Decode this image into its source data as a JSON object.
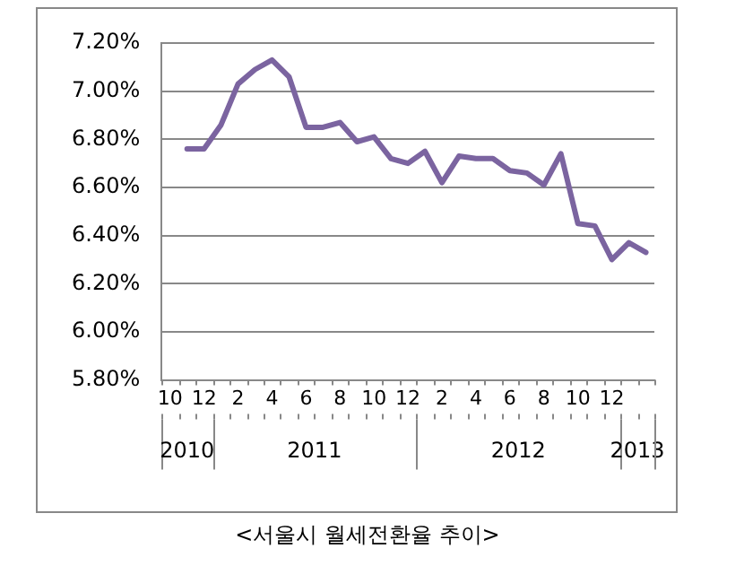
{
  "chart_data": {
    "type": "line",
    "categories": [
      "10",
      null,
      "12",
      null,
      "2",
      null,
      "4",
      null,
      "6",
      null,
      "8",
      null,
      "10",
      null,
      "12",
      null,
      "2",
      null,
      "4",
      null,
      "6",
      null,
      "8",
      null,
      "10",
      null,
      "12",
      null,
      null
    ],
    "series": [
      {
        "color": "#7b64a0",
        "values": [
          null,
          6.76,
          6.76,
          6.86,
          7.03,
          7.09,
          7.13,
          7.06,
          6.85,
          6.85,
          6.87,
          6.79,
          6.81,
          6.72,
          6.7,
          6.75,
          6.62,
          6.73,
          6.72,
          6.72,
          6.67,
          6.66,
          6.61,
          6.74,
          6.45,
          6.44,
          6.3,
          6.37,
          6.33
        ]
      }
    ],
    "ylim": [
      5.8,
      7.2
    ],
    "yticks": [
      {
        "value": 5.8,
        "label": "5.80%"
      },
      {
        "value": 6.0,
        "label": "6.00%"
      },
      {
        "value": 6.2,
        "label": "6.20%"
      },
      {
        "value": 6.4,
        "label": "6.40%"
      },
      {
        "value": 6.6,
        "label": "6.60%"
      },
      {
        "value": 6.8,
        "label": "6.80%"
      },
      {
        "value": 7.0,
        "label": "7.00%"
      },
      {
        "value": 7.2,
        "label": "7.20%"
      }
    ],
    "grid": "y",
    "legend": false,
    "marker": "none",
    "line_style": "solid",
    "annotations": [
      "2010",
      "2011",
      "2012",
      "2013",
      "<서울시 월세전환율 추이>"
    ]
  }
}
